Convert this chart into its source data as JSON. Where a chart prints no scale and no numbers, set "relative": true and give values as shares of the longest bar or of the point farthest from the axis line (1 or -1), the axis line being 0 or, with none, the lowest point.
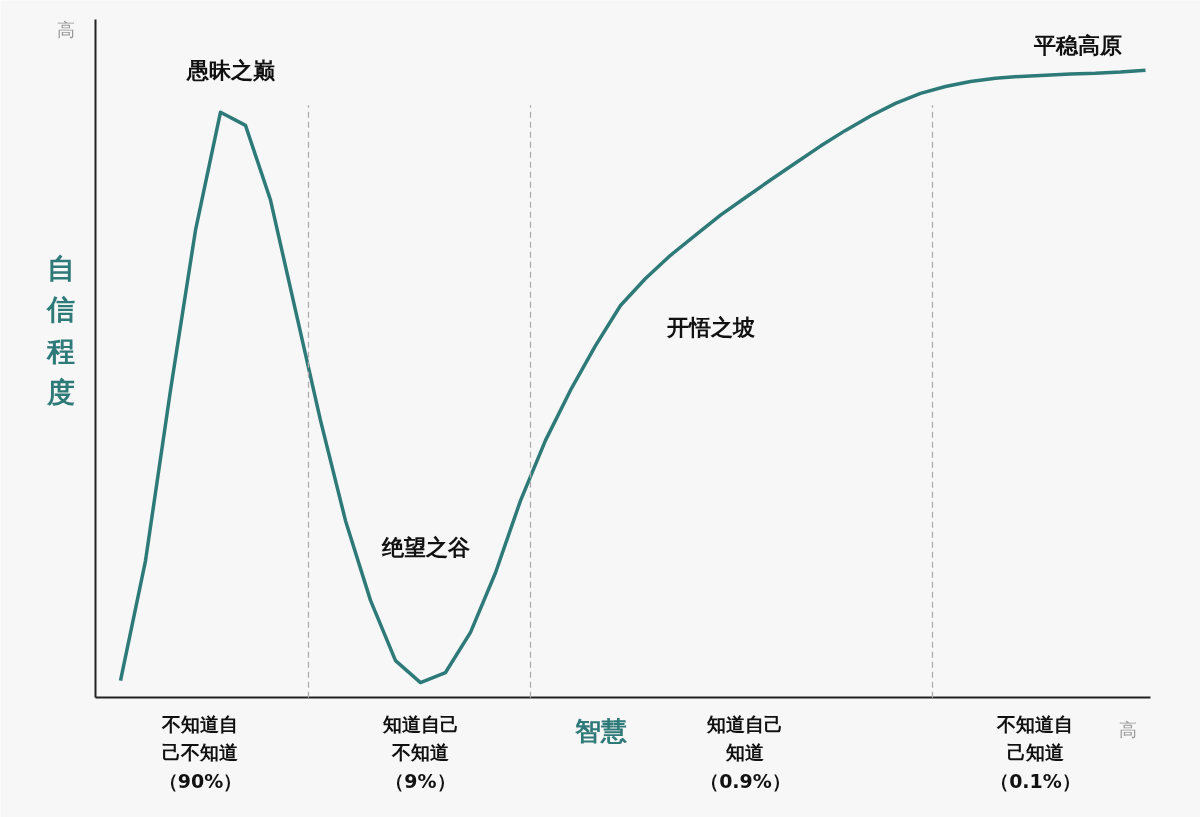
{
  "chart_data": {
    "type": "line",
    "relative": true,
    "categories": [
      null,
      null,
      null,
      null,
      null,
      null,
      null,
      null,
      null,
      null,
      null,
      null,
      null,
      null,
      null,
      null,
      null,
      null,
      null,
      null,
      null,
      null,
      null,
      null,
      null,
      null,
      null,
      null,
      null,
      null,
      null,
      null,
      null,
      null,
      null,
      null,
      null,
      null,
      null,
      null,
      null,
      null
    ],
    "series": [
      {
        "color": "#2e7a78",
        "values": [
          0.027,
          0.218,
          0.49,
          0.745,
          0.933,
          0.912,
          0.793,
          0.617,
          0.442,
          0.282,
          0.155,
          0.059,
          0.024,
          0.04,
          0.104,
          0.199,
          0.314,
          0.41,
          0.49,
          0.561,
          0.625,
          0.668,
          0.705,
          0.737,
          0.769,
          0.797,
          0.825,
          0.852,
          0.879,
          0.904,
          0.927,
          0.947,
          0.963,
          0.974,
          0.982,
          0.987,
          0.99,
          0.992,
          0.994,
          0.995,
          0.997,
          1
        ]
      }
    ],
    "xlabel": "智慧",
    "ylabel": "自信程度",
    "annotations": [
      "愚昧之巅",
      "绝望之谷",
      "开悟之坡",
      "平稳高原",
      "不知道自己不知道（90%）",
      "知道自己不知道（9%）",
      "知道自己知道（0.9%）",
      "不知道自己知道（0.1%）",
      "高",
      "高"
    ]
  }
}
